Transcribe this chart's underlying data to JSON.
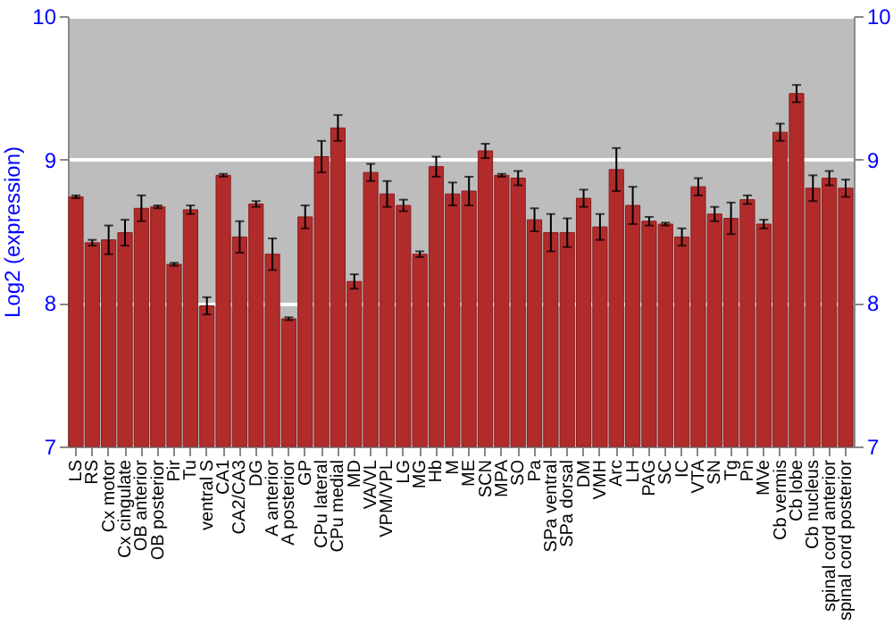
{
  "chart_data": {
    "type": "bar",
    "ylabel": "Log2 (expression)",
    "categories": [
      "LS",
      "RS",
      "Cx motor",
      "Cx cingulate",
      "OB anterior",
      "OB posterior",
      "Pir",
      "Tu",
      "ventral S",
      "CA1",
      "CA2/CA3",
      "DG",
      "A anterior",
      "A posterior",
      "GP",
      "CPu lateral",
      "CPu medial",
      "MD",
      "VA/VL",
      "VPM/VPL",
      "LG",
      "MG",
      "Hb",
      "M",
      "ME",
      "SCN",
      "MPA",
      "SO",
      "Pa",
      "SPa ventral",
      "SPa dorsal",
      "DM",
      "VMH",
      "Arc",
      "LH",
      "PAG",
      "SC",
      "IC",
      "VTA",
      "SN",
      "Tg",
      "Pn",
      "MVe",
      "Cb vermis",
      "Cb lobe",
      "Cb nucleus",
      "spinal cord anterior",
      "spinal cord posterior"
    ],
    "values": [
      8.74,
      8.42,
      8.44,
      8.49,
      8.66,
      8.67,
      8.27,
      8.65,
      7.98,
      8.89,
      8.46,
      8.69,
      8.34,
      7.89,
      8.6,
      9.02,
      9.22,
      8.15,
      8.91,
      8.76,
      8.68,
      8.34,
      8.95,
      8.76,
      8.78,
      9.06,
      8.89,
      8.87,
      8.58,
      8.49,
      8.49,
      8.73,
      8.53,
      8.93,
      8.68,
      8.57,
      8.55,
      8.46,
      8.81,
      8.62,
      8.59,
      8.72,
      8.55,
      9.19,
      9.46,
      8.8,
      8.87,
      8.8
    ],
    "errors": [
      0.01,
      0.02,
      0.1,
      0.09,
      0.09,
      0.01,
      0.01,
      0.03,
      0.06,
      0.01,
      0.11,
      0.02,
      0.11,
      0.01,
      0.08,
      0.11,
      0.09,
      0.05,
      0.06,
      0.09,
      0.04,
      0.02,
      0.07,
      0.08,
      0.1,
      0.05,
      0.01,
      0.05,
      0.08,
      0.13,
      0.1,
      0.06,
      0.09,
      0.15,
      0.13,
      0.03,
      0.01,
      0.06,
      0.06,
      0.05,
      0.11,
      0.03,
      0.03,
      0.06,
      0.06,
      0.09,
      0.05,
      0.06
    ],
    "color": "#b22b2b",
    "ylim": [
      7,
      10
    ],
    "yticks": [
      7,
      8,
      9,
      10
    ],
    "y2lim": [
      7,
      10
    ],
    "y2ticks": [
      7,
      8,
      9,
      10
    ],
    "grid": "y"
  }
}
